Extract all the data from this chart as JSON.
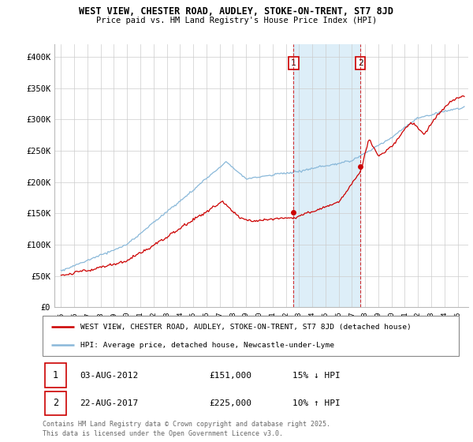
{
  "title_line1": "WEST VIEW, CHESTER ROAD, AUDLEY, STOKE-ON-TRENT, ST7 8JD",
  "title_line2": "Price paid vs. HM Land Registry's House Price Index (HPI)",
  "ylim": [
    0,
    420000
  ],
  "yticks": [
    0,
    50000,
    100000,
    150000,
    200000,
    250000,
    300000,
    350000,
    400000
  ],
  "ytick_labels": [
    "£0",
    "£50K",
    "£100K",
    "£150K",
    "£200K",
    "£250K",
    "£300K",
    "£350K",
    "£400K"
  ],
  "purchase1_year": 2012.59,
  "purchase1_price": 151000,
  "purchase2_year": 2017.64,
  "purchase2_price": 225000,
  "legend_property": "WEST VIEW, CHESTER ROAD, AUDLEY, STOKE-ON-TRENT, ST7 8JD (detached house)",
  "legend_hpi": "HPI: Average price, detached house, Newcastle-under-Lyme",
  "property_line_color": "#cc0000",
  "hpi_line_color": "#89b8d9",
  "annotation_box_color": "#cc0000",
  "shaded_region_color": "#ddeef8",
  "footer_line1": "Contains HM Land Registry data © Crown copyright and database right 2025.",
  "footer_line2": "This data is licensed under the Open Government Licence v3.0.",
  "table_row1": [
    "1",
    "03-AUG-2012",
    "£151,000",
    "15% ↓ HPI"
  ],
  "table_row2": [
    "2",
    "22-AUG-2017",
    "£225,000",
    "10% ↑ HPI"
  ],
  "xlim_left": 1994.5,
  "xlim_right": 2025.8
}
